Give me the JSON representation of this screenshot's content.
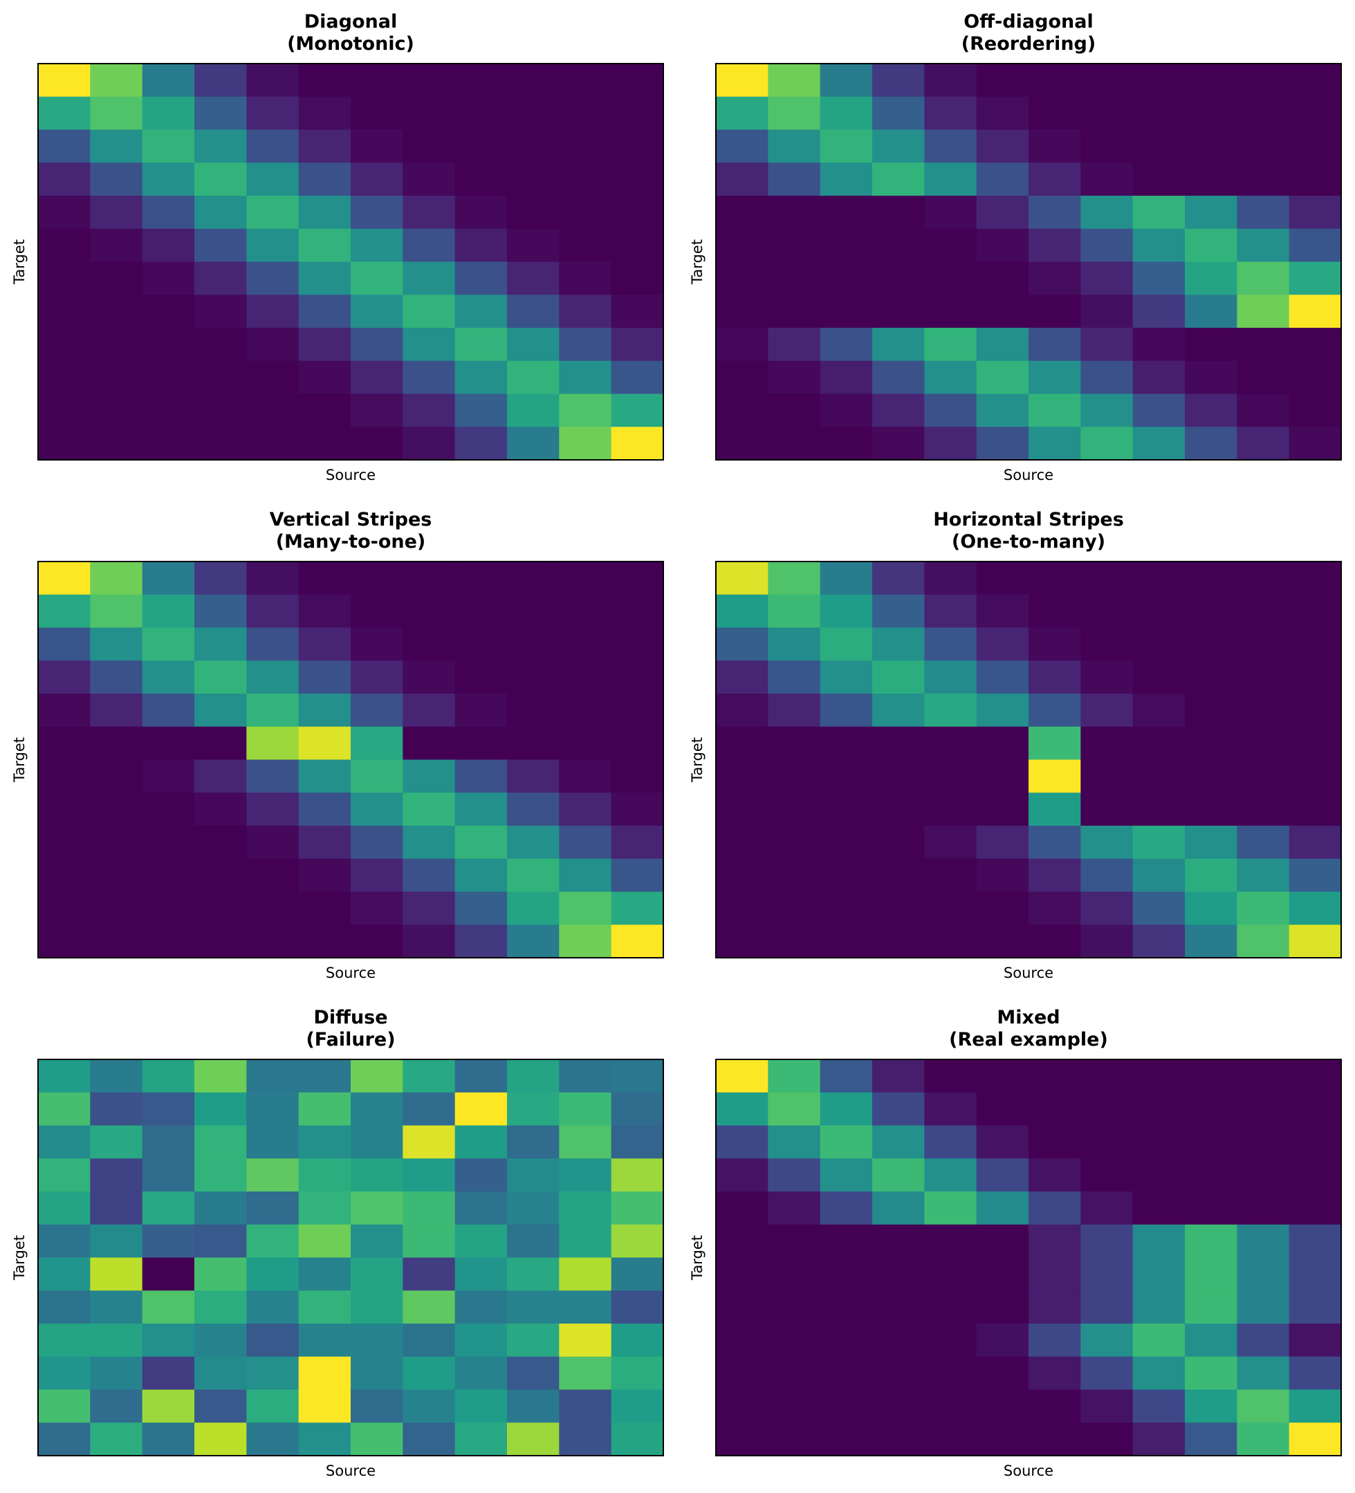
{
  "colormap": {
    "name": "viridis",
    "stops": [
      "#440154",
      "#482878",
      "#3e4989",
      "#31688e",
      "#26828e",
      "#1f9e89",
      "#35b779",
      "#6ece58",
      "#b5de2b",
      "#fde725"
    ]
  },
  "chart_data": [
    {
      "type": "heatmap",
      "title": "Diagonal\n(Monotonic)",
      "xlabel": "Source",
      "ylabel": "Target",
      "vmin": 0,
      "vmax": 1,
      "ticks_shown": false,
      "values": [
        [
          1.0,
          0.78,
          0.42,
          0.17,
          0.04,
          0.0,
          0.0,
          0.0,
          0.0,
          0.0,
          0.0,
          0.0
        ],
        [
          0.6,
          0.72,
          0.58,
          0.3,
          0.1,
          0.03,
          0.0,
          0.0,
          0.0,
          0.0,
          0.0,
          0.0
        ],
        [
          0.27,
          0.5,
          0.65,
          0.5,
          0.25,
          0.1,
          0.02,
          0.0,
          0.0,
          0.0,
          0.0,
          0.0
        ],
        [
          0.1,
          0.25,
          0.5,
          0.65,
          0.5,
          0.25,
          0.1,
          0.02,
          0.0,
          0.0,
          0.0,
          0.0
        ],
        [
          0.02,
          0.1,
          0.25,
          0.5,
          0.65,
          0.5,
          0.25,
          0.1,
          0.02,
          0.0,
          0.0,
          0.0
        ],
        [
          0.0,
          0.02,
          0.08,
          0.25,
          0.5,
          0.65,
          0.5,
          0.25,
          0.08,
          0.02,
          0.0,
          0.0
        ],
        [
          0.0,
          0.0,
          0.02,
          0.1,
          0.25,
          0.5,
          0.65,
          0.5,
          0.25,
          0.1,
          0.02,
          0.0
        ],
        [
          0.0,
          0.0,
          0.0,
          0.02,
          0.1,
          0.25,
          0.5,
          0.65,
          0.5,
          0.25,
          0.1,
          0.02
        ],
        [
          0.0,
          0.0,
          0.0,
          0.0,
          0.02,
          0.1,
          0.25,
          0.5,
          0.65,
          0.5,
          0.25,
          0.1
        ],
        [
          0.0,
          0.0,
          0.0,
          0.0,
          0.0,
          0.02,
          0.1,
          0.25,
          0.5,
          0.65,
          0.5,
          0.27
        ],
        [
          0.0,
          0.0,
          0.0,
          0.0,
          0.0,
          0.0,
          0.03,
          0.1,
          0.3,
          0.58,
          0.72,
          0.6
        ],
        [
          0.0,
          0.0,
          0.0,
          0.0,
          0.0,
          0.0,
          0.0,
          0.04,
          0.17,
          0.42,
          0.78,
          1.0
        ]
      ]
    },
    {
      "type": "heatmap",
      "title": "Off-diagonal\n(Reordering)",
      "xlabel": "Source",
      "ylabel": "Target",
      "vmin": 0,
      "vmax": 1,
      "ticks_shown": false,
      "values": [
        [
          1.0,
          0.78,
          0.42,
          0.17,
          0.04,
          0.0,
          0.0,
          0.0,
          0.0,
          0.0,
          0.0,
          0.0
        ],
        [
          0.6,
          0.72,
          0.58,
          0.3,
          0.1,
          0.03,
          0.0,
          0.0,
          0.0,
          0.0,
          0.0,
          0.0
        ],
        [
          0.27,
          0.5,
          0.65,
          0.5,
          0.25,
          0.1,
          0.02,
          0.0,
          0.0,
          0.0,
          0.0,
          0.0
        ],
        [
          0.1,
          0.25,
          0.5,
          0.65,
          0.5,
          0.25,
          0.1,
          0.02,
          0.0,
          0.0,
          0.0,
          0.0
        ],
        [
          0.0,
          0.0,
          0.0,
          0.0,
          0.02,
          0.1,
          0.25,
          0.5,
          0.65,
          0.5,
          0.25,
          0.1
        ],
        [
          0.0,
          0.0,
          0.0,
          0.0,
          0.0,
          0.02,
          0.1,
          0.25,
          0.5,
          0.65,
          0.5,
          0.27
        ],
        [
          0.0,
          0.0,
          0.0,
          0.0,
          0.0,
          0.0,
          0.03,
          0.1,
          0.3,
          0.58,
          0.72,
          0.6
        ],
        [
          0.0,
          0.0,
          0.0,
          0.0,
          0.0,
          0.0,
          0.0,
          0.04,
          0.17,
          0.42,
          0.78,
          1.0
        ],
        [
          0.02,
          0.1,
          0.25,
          0.5,
          0.65,
          0.5,
          0.25,
          0.1,
          0.02,
          0.0,
          0.0,
          0.0
        ],
        [
          0.0,
          0.02,
          0.08,
          0.25,
          0.5,
          0.65,
          0.5,
          0.25,
          0.08,
          0.02,
          0.0,
          0.0
        ],
        [
          0.0,
          0.0,
          0.02,
          0.1,
          0.25,
          0.5,
          0.65,
          0.5,
          0.25,
          0.1,
          0.02,
          0.0
        ],
        [
          0.0,
          0.0,
          0.0,
          0.02,
          0.1,
          0.25,
          0.5,
          0.65,
          0.5,
          0.25,
          0.1,
          0.02
        ]
      ]
    },
    {
      "type": "heatmap",
      "title": "Vertical Stripes\n(Many-to-one)",
      "xlabel": "Source",
      "ylabel": "Target",
      "vmin": 0,
      "vmax": 1,
      "ticks_shown": false,
      "values": [
        [
          1.0,
          0.78,
          0.42,
          0.17,
          0.04,
          0.0,
          0.0,
          0.0,
          0.0,
          0.0,
          0.0,
          0.0
        ],
        [
          0.6,
          0.72,
          0.58,
          0.3,
          0.1,
          0.03,
          0.0,
          0.0,
          0.0,
          0.0,
          0.0,
          0.0
        ],
        [
          0.27,
          0.5,
          0.65,
          0.5,
          0.25,
          0.1,
          0.02,
          0.0,
          0.0,
          0.0,
          0.0,
          0.0
        ],
        [
          0.1,
          0.25,
          0.5,
          0.65,
          0.5,
          0.25,
          0.1,
          0.02,
          0.0,
          0.0,
          0.0,
          0.0
        ],
        [
          0.02,
          0.1,
          0.25,
          0.5,
          0.65,
          0.5,
          0.25,
          0.1,
          0.02,
          0.0,
          0.0,
          0.0
        ],
        [
          0.0,
          0.0,
          0.0,
          0.0,
          0.85,
          0.95,
          0.6,
          0.0,
          0.0,
          0.0,
          0.0,
          0.0
        ],
        [
          0.0,
          0.0,
          0.02,
          0.1,
          0.25,
          0.5,
          0.65,
          0.5,
          0.25,
          0.1,
          0.02,
          0.0
        ],
        [
          0.0,
          0.0,
          0.0,
          0.02,
          0.1,
          0.25,
          0.5,
          0.65,
          0.5,
          0.25,
          0.1,
          0.02
        ],
        [
          0.0,
          0.0,
          0.0,
          0.0,
          0.02,
          0.1,
          0.25,
          0.5,
          0.65,
          0.5,
          0.25,
          0.1
        ],
        [
          0.0,
          0.0,
          0.0,
          0.0,
          0.0,
          0.02,
          0.1,
          0.25,
          0.5,
          0.65,
          0.5,
          0.27
        ],
        [
          0.0,
          0.0,
          0.0,
          0.0,
          0.0,
          0.0,
          0.03,
          0.1,
          0.3,
          0.58,
          0.72,
          0.6
        ],
        [
          0.0,
          0.0,
          0.0,
          0.0,
          0.0,
          0.0,
          0.0,
          0.04,
          0.17,
          0.42,
          0.78,
          1.0
        ]
      ]
    },
    {
      "type": "heatmap",
      "title": "Horizontal Stripes\n(One-to-many)",
      "xlabel": "Source",
      "ylabel": "Target",
      "vmin": 0,
      "vmax": 1,
      "ticks_shown": false,
      "values": [
        [
          0.95,
          0.72,
          0.42,
          0.15,
          0.04,
          0.0,
          0.0,
          0.0,
          0.0,
          0.0,
          0.0,
          0.0
        ],
        [
          0.55,
          0.68,
          0.55,
          0.3,
          0.1,
          0.03,
          0.0,
          0.0,
          0.0,
          0.0,
          0.0,
          0.0
        ],
        [
          0.3,
          0.48,
          0.62,
          0.5,
          0.27,
          0.1,
          0.02,
          0.0,
          0.0,
          0.0,
          0.0,
          0.0
        ],
        [
          0.1,
          0.27,
          0.5,
          0.62,
          0.48,
          0.27,
          0.1,
          0.02,
          0.0,
          0.0,
          0.0,
          0.0
        ],
        [
          0.03,
          0.1,
          0.27,
          0.5,
          0.6,
          0.5,
          0.27,
          0.1,
          0.03,
          0.0,
          0.0,
          0.0
        ],
        [
          0.0,
          0.0,
          0.0,
          0.0,
          0.0,
          0.0,
          0.68,
          0.0,
          0.0,
          0.0,
          0.0,
          0.0
        ],
        [
          0.0,
          0.0,
          0.0,
          0.0,
          0.0,
          0.0,
          1.0,
          0.0,
          0.0,
          0.0,
          0.0,
          0.0
        ],
        [
          0.0,
          0.0,
          0.0,
          0.0,
          0.0,
          0.0,
          0.55,
          0.0,
          0.0,
          0.0,
          0.0,
          0.0
        ],
        [
          0.0,
          0.0,
          0.0,
          0.0,
          0.03,
          0.1,
          0.27,
          0.5,
          0.6,
          0.5,
          0.27,
          0.1
        ],
        [
          0.0,
          0.0,
          0.0,
          0.0,
          0.0,
          0.02,
          0.1,
          0.27,
          0.48,
          0.62,
          0.5,
          0.3
        ],
        [
          0.0,
          0.0,
          0.0,
          0.0,
          0.0,
          0.0,
          0.03,
          0.1,
          0.3,
          0.55,
          0.68,
          0.55
        ],
        [
          0.0,
          0.0,
          0.0,
          0.0,
          0.0,
          0.0,
          0.0,
          0.04,
          0.15,
          0.42,
          0.72,
          0.95
        ]
      ]
    },
    {
      "type": "heatmap",
      "title": "Diffuse\n(Failure)",
      "xlabel": "Source",
      "ylabel": "Target",
      "vmin": 0,
      "vmax": 1,
      "ticks_shown": false,
      "values": [
        [
          0.55,
          0.42,
          0.58,
          0.78,
          0.4,
          0.4,
          0.78,
          0.6,
          0.35,
          0.58,
          0.38,
          0.4
        ],
        [
          0.7,
          0.25,
          0.28,
          0.55,
          0.42,
          0.7,
          0.45,
          0.35,
          1.0,
          0.6,
          0.68,
          0.35
        ],
        [
          0.48,
          0.6,
          0.35,
          0.65,
          0.42,
          0.5,
          0.45,
          0.95,
          0.55,
          0.35,
          0.72,
          0.32
        ],
        [
          0.65,
          0.2,
          0.35,
          0.65,
          0.75,
          0.62,
          0.58,
          0.55,
          0.3,
          0.48,
          0.52,
          0.85
        ],
        [
          0.58,
          0.2,
          0.6,
          0.42,
          0.35,
          0.65,
          0.72,
          0.68,
          0.38,
          0.45,
          0.58,
          0.7
        ],
        [
          0.38,
          0.48,
          0.3,
          0.28,
          0.65,
          0.78,
          0.5,
          0.68,
          0.58,
          0.38,
          0.58,
          0.85
        ],
        [
          0.52,
          0.9,
          0.0,
          0.7,
          0.55,
          0.45,
          0.58,
          0.18,
          0.52,
          0.6,
          0.88,
          0.42
        ],
        [
          0.38,
          0.45,
          0.72,
          0.62,
          0.45,
          0.65,
          0.58,
          0.75,
          0.4,
          0.45,
          0.45,
          0.25
        ],
        [
          0.58,
          0.58,
          0.5,
          0.45,
          0.28,
          0.45,
          0.45,
          0.38,
          0.52,
          0.6,
          0.95,
          0.55
        ],
        [
          0.52,
          0.45,
          0.18,
          0.48,
          0.5,
          1.0,
          0.45,
          0.55,
          0.45,
          0.28,
          0.72,
          0.62
        ],
        [
          0.7,
          0.35,
          0.85,
          0.28,
          0.62,
          1.0,
          0.35,
          0.45,
          0.55,
          0.4,
          0.25,
          0.55
        ],
        [
          0.35,
          0.62,
          0.38,
          0.9,
          0.4,
          0.5,
          0.7,
          0.32,
          0.6,
          0.85,
          0.25,
          0.58
        ]
      ]
    },
    {
      "type": "heatmap",
      "title": "Mixed\n(Real example)",
      "xlabel": "Source",
      "ylabel": "Target",
      "vmin": 0,
      "vmax": 1,
      "ticks_shown": false,
      "values": [
        [
          1.0,
          0.68,
          0.28,
          0.08,
          0.0,
          0.0,
          0.0,
          0.0,
          0.0,
          0.0,
          0.0,
          0.0
        ],
        [
          0.55,
          0.72,
          0.55,
          0.22,
          0.05,
          0.0,
          0.0,
          0.0,
          0.0,
          0.0,
          0.0,
          0.0
        ],
        [
          0.22,
          0.5,
          0.68,
          0.5,
          0.22,
          0.05,
          0.0,
          0.0,
          0.0,
          0.0,
          0.0,
          0.0
        ],
        [
          0.05,
          0.22,
          0.5,
          0.68,
          0.5,
          0.22,
          0.05,
          0.0,
          0.0,
          0.0,
          0.0,
          0.0
        ],
        [
          0.0,
          0.05,
          0.22,
          0.48,
          0.68,
          0.48,
          0.22,
          0.05,
          0.0,
          0.0,
          0.0,
          0.0
        ],
        [
          0.0,
          0.0,
          0.0,
          0.0,
          0.0,
          0.0,
          0.08,
          0.2,
          0.48,
          0.68,
          0.45,
          0.22
        ],
        [
          0.0,
          0.0,
          0.0,
          0.0,
          0.0,
          0.0,
          0.08,
          0.2,
          0.48,
          0.68,
          0.45,
          0.22
        ],
        [
          0.0,
          0.0,
          0.0,
          0.0,
          0.0,
          0.0,
          0.08,
          0.2,
          0.48,
          0.68,
          0.45,
          0.22
        ],
        [
          0.0,
          0.0,
          0.0,
          0.0,
          0.0,
          0.04,
          0.22,
          0.5,
          0.68,
          0.5,
          0.22,
          0.05
        ],
        [
          0.0,
          0.0,
          0.0,
          0.0,
          0.0,
          0.0,
          0.06,
          0.22,
          0.5,
          0.68,
          0.5,
          0.22
        ],
        [
          0.0,
          0.0,
          0.0,
          0.0,
          0.0,
          0.0,
          0.0,
          0.05,
          0.22,
          0.55,
          0.72,
          0.55
        ],
        [
          0.0,
          0.0,
          0.0,
          0.0,
          0.0,
          0.0,
          0.0,
          0.0,
          0.08,
          0.28,
          0.68,
          1.0
        ]
      ]
    }
  ]
}
